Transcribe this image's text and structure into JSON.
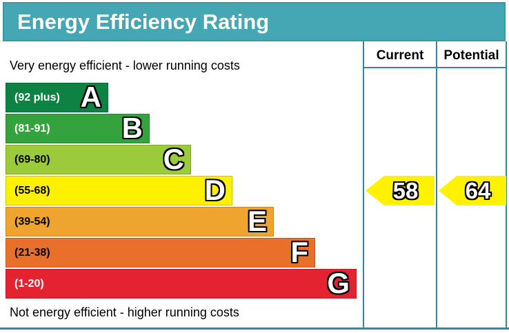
{
  "title": "Energy Efficiency Rating",
  "table": {
    "current_header": "Current",
    "potential_header": "Potential"
  },
  "captions": {
    "top": "Very energy efficient - lower running costs",
    "bottom": "Not energy efficient - higher running costs"
  },
  "colors": {
    "header_bar": "#45a6b4",
    "table_border": "#35869a",
    "arrow": "#fff200"
  },
  "chart_data": {
    "type": "bar",
    "title": "Energy Efficiency Rating",
    "categories": [
      "A",
      "B",
      "C",
      "D",
      "E",
      "F",
      "G"
    ],
    "bands": [
      {
        "letter": "A",
        "range": "(92 plus)",
        "min": 92,
        "max": 100,
        "color": "#0e8243",
        "text_color": "#ffffff"
      },
      {
        "letter": "B",
        "range": "(81-91)",
        "min": 81,
        "max": 91,
        "color": "#35a33d",
        "text_color": "#ffffff"
      },
      {
        "letter": "C",
        "range": "(69-80)",
        "min": 69,
        "max": 80,
        "color": "#9bca3b",
        "text_color": "#000000"
      },
      {
        "letter": "D",
        "range": "(55-68)",
        "min": 55,
        "max": 68,
        "color": "#fdf100",
        "text_color": "#000000"
      },
      {
        "letter": "E",
        "range": "(39-54)",
        "min": 39,
        "max": 54,
        "color": "#f0a430",
        "text_color": "#000000"
      },
      {
        "letter": "F",
        "range": "(21-38)",
        "min": 21,
        "max": 38,
        "color": "#e9702a",
        "text_color": "#000000"
      },
      {
        "letter": "G",
        "range": "(1-20)",
        "min": 1,
        "max": 20,
        "color": "#e42230",
        "text_color": "#ffffff"
      }
    ],
    "current": {
      "label": "Current",
      "value": 58
    },
    "potential": {
      "label": "Potential",
      "value": 64
    },
    "legend_position": "none",
    "grid": false
  }
}
